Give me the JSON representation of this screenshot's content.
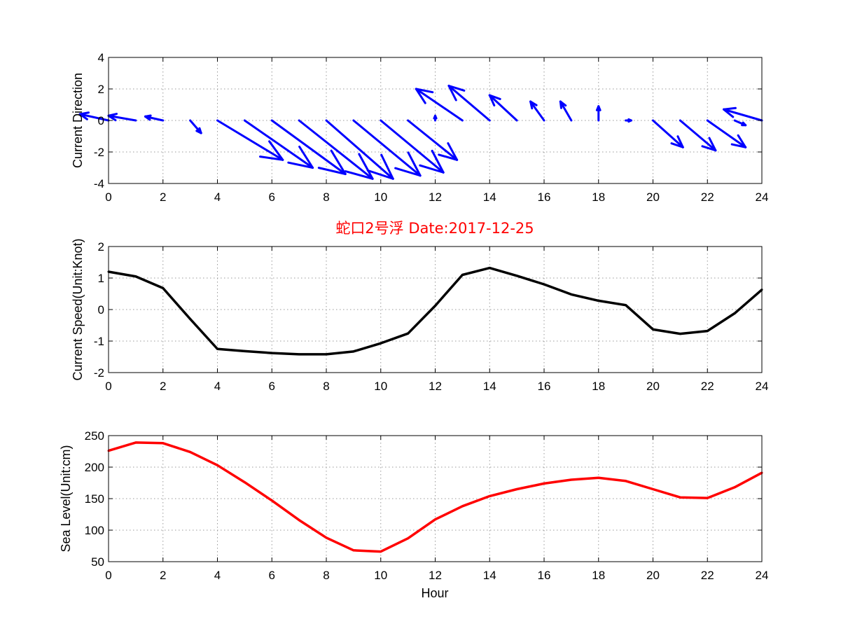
{
  "title": "蛇口2号浮   Date:2017-12-25",
  "colors": {
    "arrows": "#0000ff",
    "speed": "#000000",
    "sea": "#ff0000",
    "title": "#ff0000"
  },
  "chart_data": [
    {
      "type": "quiver",
      "ylabel": "Current Direction",
      "xlabel": "",
      "xlim": [
        0,
        24
      ],
      "ylim": [
        -4,
        4
      ],
      "xticks": [
        "0",
        "2",
        "4",
        "6",
        "8",
        "10",
        "12",
        "14",
        "16",
        "18",
        "20",
        "22",
        "24"
      ],
      "yticks": [
        "4",
        "2",
        "0",
        "-2",
        "-4"
      ],
      "grid": true,
      "x": [
        0,
        1,
        2,
        3,
        4,
        5,
        6,
        7,
        8,
        9,
        10,
        11,
        12,
        13,
        14,
        15,
        16,
        17,
        18,
        19,
        20,
        21,
        22,
        23,
        24
      ],
      "u": [
        -1.05,
        -1.0,
        -0.65,
        0.4,
        2.4,
        2.5,
        2.7,
        2.7,
        2.45,
        2.45,
        2.3,
        1.8,
        0.0,
        -1.7,
        -1.5,
        -1.0,
        -0.5,
        -0.4,
        0.0,
        0.2,
        1.1,
        1.3,
        1.4,
        0.4,
        -1.4
      ],
      "v": [
        0.4,
        0.3,
        0.25,
        -0.8,
        -2.5,
        -3.0,
        -3.4,
        -3.7,
        -3.7,
        -3.5,
        -3.3,
        -2.5,
        0.3,
        2.0,
        2.2,
        1.6,
        1.2,
        1.2,
        0.9,
        0.0,
        -1.7,
        -1.9,
        -1.7,
        -0.3,
        0.7
      ]
    },
    {
      "type": "line",
      "ylabel": "Current Speed(Unit:Knot)",
      "xlabel": "",
      "xlim": [
        0,
        24
      ],
      "ylim": [
        -2,
        2
      ],
      "xticks": [
        "0",
        "2",
        "4",
        "6",
        "8",
        "10",
        "12",
        "14",
        "16",
        "18",
        "20",
        "22",
        "24"
      ],
      "yticks": [
        "2",
        "1",
        "0",
        "-1",
        "-2"
      ],
      "grid": true,
      "x": [
        0,
        1,
        2,
        3,
        4,
        5,
        6,
        7,
        8,
        9,
        10,
        11,
        12,
        13,
        14,
        15,
        16,
        17,
        18,
        19,
        20,
        21,
        22,
        23,
        24
      ],
      "values": [
        1.2,
        1.05,
        0.68,
        -0.3,
        -1.25,
        -1.32,
        -1.38,
        -1.42,
        -1.42,
        -1.33,
        -1.07,
        -0.76,
        0.12,
        1.1,
        1.32,
        1.07,
        0.8,
        0.48,
        0.28,
        0.14,
        -0.63,
        -0.77,
        -0.68,
        -0.12,
        0.63
      ]
    },
    {
      "type": "line",
      "ylabel": "Sea Level(Unit:cm)",
      "xlabel": "Hour",
      "xlim": [
        0,
        24
      ],
      "ylim": [
        50,
        250
      ],
      "xticks": [
        "0",
        "2",
        "4",
        "6",
        "8",
        "10",
        "12",
        "14",
        "16",
        "18",
        "20",
        "22",
        "24"
      ],
      "yticks": [
        "250",
        "200",
        "150",
        "100",
        "50"
      ],
      "grid": true,
      "x": [
        0,
        1,
        2,
        3,
        4,
        5,
        6,
        7,
        8,
        9,
        10,
        11,
        12,
        13,
        14,
        15,
        16,
        17,
        18,
        19,
        20,
        21,
        22,
        23,
        24
      ],
      "values": [
        226,
        239,
        238,
        224,
        203,
        176,
        147,
        116,
        88,
        68,
        66,
        87,
        117,
        138,
        154,
        165,
        174,
        180,
        183,
        178,
        165,
        152,
        151,
        168,
        191
      ]
    }
  ]
}
